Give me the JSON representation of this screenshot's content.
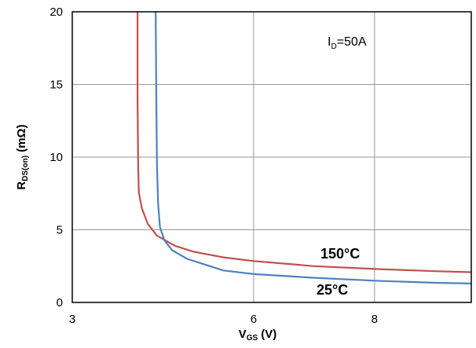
{
  "chart_data": {
    "type": "line",
    "xlabel": {
      "base": "V",
      "sub": "GS",
      "suffix": " (V)"
    },
    "ylabel": {
      "base": "R",
      "sub": "DS(on)",
      "suffix": " (mΩ)"
    },
    "xlim": [
      3,
      9.6
    ],
    "ylim": [
      0,
      20
    ],
    "xticks": [
      3,
      6,
      8
    ],
    "yticks": [
      0,
      5,
      10,
      15,
      20
    ],
    "grid": true,
    "annotation": {
      "base": "I",
      "sub": "D",
      "suffix": "=50A"
    },
    "series": [
      {
        "name": "150°C",
        "color": "#c0504d",
        "points": [
          [
            4.08,
            20
          ],
          [
            4.08,
            14
          ],
          [
            4.09,
            9.5
          ],
          [
            4.1,
            7.6
          ],
          [
            4.15,
            6.5
          ],
          [
            4.25,
            5.4
          ],
          [
            4.4,
            4.6
          ],
          [
            4.7,
            3.9
          ],
          [
            5.0,
            3.5
          ],
          [
            5.5,
            3.1
          ],
          [
            6.0,
            2.85
          ],
          [
            7.0,
            2.5
          ],
          [
            8.0,
            2.3
          ],
          [
            9.0,
            2.15
          ],
          [
            9.6,
            2.08
          ]
        ]
      },
      {
        "name": "25°C",
        "color": "#4f81bd",
        "points": [
          [
            4.38,
            20
          ],
          [
            4.39,
            14
          ],
          [
            4.4,
            9.5
          ],
          [
            4.42,
            6.8
          ],
          [
            4.45,
            5.2
          ],
          [
            4.52,
            4.3
          ],
          [
            4.65,
            3.6
          ],
          [
            4.9,
            3.0
          ],
          [
            5.2,
            2.6
          ],
          [
            5.5,
            2.2
          ],
          [
            6.0,
            1.95
          ],
          [
            7.0,
            1.7
          ],
          [
            8.0,
            1.5
          ],
          [
            9.0,
            1.35
          ],
          [
            9.6,
            1.3
          ]
        ]
      }
    ],
    "series_labels": [
      "150°C",
      "25°C"
    ]
  }
}
